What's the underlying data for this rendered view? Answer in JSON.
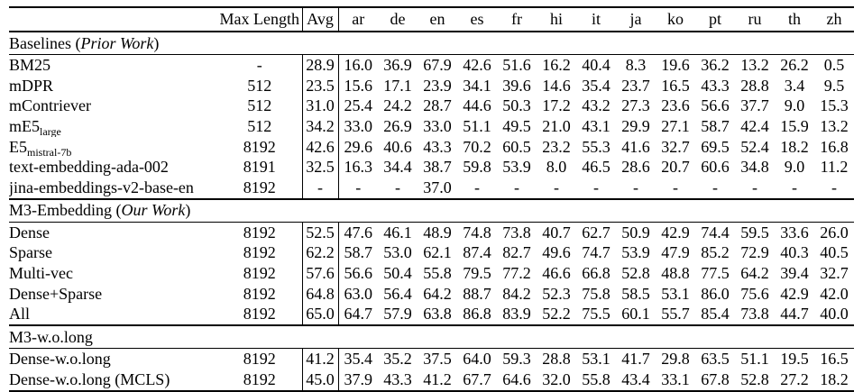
{
  "page": {
    "background_color": "#ffffff",
    "text_color": "#000000",
    "rule_color": "#000000"
  },
  "header": {
    "model_col": "",
    "max_length": "Max Length",
    "avg": "Avg",
    "languages": [
      "ar",
      "de",
      "en",
      "es",
      "fr",
      "hi",
      "it",
      "ja",
      "ko",
      "pt",
      "ru",
      "th",
      "zh"
    ]
  },
  "sections": [
    {
      "title_prefix": "Baselines (",
      "title_italic": "Prior Work",
      "title_suffix": ")",
      "rows": [
        {
          "label": "BM25",
          "label_sub": "",
          "max_length": "-",
          "avg": "28.9",
          "avg_bold": false,
          "values": [
            "16.0",
            "36.9",
            "67.9",
            "42.6",
            "51.6",
            "16.2",
            "40.4",
            "8.3",
            "19.6",
            "36.2",
            "13.2",
            "26.2",
            "0.5"
          ],
          "bold_values": []
        },
        {
          "label": "mDPR",
          "label_sub": "",
          "max_length": "512",
          "avg": "23.5",
          "avg_bold": false,
          "values": [
            "15.6",
            "17.1",
            "23.9",
            "34.1",
            "39.6",
            "14.6",
            "35.4",
            "23.7",
            "16.5",
            "43.3",
            "28.8",
            "3.4",
            "9.5"
          ],
          "bold_values": []
        },
        {
          "label": "mContriever",
          "label_sub": "",
          "max_length": "512",
          "avg": "31.0",
          "avg_bold": false,
          "values": [
            "25.4",
            "24.2",
            "28.7",
            "44.6",
            "50.3",
            "17.2",
            "43.2",
            "27.3",
            "23.6",
            "56.6",
            "37.7",
            "9.0",
            "15.3"
          ],
          "bold_values": []
        },
        {
          "label": "mE5",
          "label_sub": "large",
          "max_length": "512",
          "avg": "34.2",
          "avg_bold": false,
          "values": [
            "33.0",
            "26.9",
            "33.0",
            "51.1",
            "49.5",
            "21.0",
            "43.1",
            "29.9",
            "27.1",
            "58.7",
            "42.4",
            "15.9",
            "13.2"
          ],
          "bold_values": []
        },
        {
          "label": "E5",
          "label_sub": "mistral-7b",
          "max_length": "8192",
          "avg": "42.6",
          "avg_bold": false,
          "values": [
            "29.6",
            "40.6",
            "43.3",
            "70.2",
            "60.5",
            "23.2",
            "55.3",
            "41.6",
            "32.7",
            "69.5",
            "52.4",
            "18.2",
            "16.8"
          ],
          "bold_values": []
        },
        {
          "label": "text-embedding-ada-002",
          "label_sub": "",
          "max_length": "8191",
          "avg": "32.5",
          "avg_bold": false,
          "values": [
            "16.3",
            "34.4",
            "38.7",
            "59.8",
            "53.9",
            "8.0",
            "46.5",
            "28.6",
            "20.7",
            "60.6",
            "34.8",
            "9.0",
            "11.2"
          ],
          "bold_values": []
        },
        {
          "label": "jina-embeddings-v2-base-en",
          "label_sub": "",
          "max_length": "8192",
          "avg": "-",
          "avg_bold": false,
          "values": [
            "-",
            "-",
            "37.0",
            "-",
            "-",
            "-",
            "-",
            "-",
            "-",
            "-",
            "-",
            "-",
            "-"
          ],
          "bold_values": []
        }
      ]
    },
    {
      "title_prefix": "M3-Embedding (",
      "title_italic": "Our Work",
      "title_suffix": ")",
      "rows": [
        {
          "label": "Dense",
          "label_sub": "",
          "max_length": "8192",
          "avg": "52.5",
          "avg_bold": false,
          "values": [
            "47.6",
            "46.1",
            "48.9",
            "74.8",
            "73.8",
            "40.7",
            "62.7",
            "50.9",
            "42.9",
            "74.4",
            "59.5",
            "33.6",
            "26.0"
          ],
          "bold_values": []
        },
        {
          "label": "Sparse",
          "label_sub": "",
          "max_length": "8192",
          "avg": "62.2",
          "avg_bold": false,
          "values": [
            "58.7",
            "53.0",
            "62.1",
            "87.4",
            "82.7",
            "49.6",
            "74.7",
            "53.9",
            "47.9",
            "85.2",
            "72.9",
            "40.3",
            "40.5"
          ],
          "bold_values": []
        },
        {
          "label": "Multi-vec",
          "label_sub": "",
          "max_length": "8192",
          "avg": "57.6",
          "avg_bold": false,
          "values": [
            "56.6",
            "50.4",
            "55.8",
            "79.5",
            "77.2",
            "46.6",
            "66.8",
            "52.8",
            "48.8",
            "77.5",
            "64.2",
            "39.4",
            "32.7"
          ],
          "bold_values": []
        },
        {
          "label": "Dense+Sparse",
          "label_sub": "",
          "max_length": "8192",
          "avg": "64.8",
          "avg_bold": false,
          "values": [
            "63.0",
            "56.4",
            "64.2",
            "88.7",
            "84.2",
            "52.3",
            "75.8",
            "58.5",
            "53.1",
            "86.0",
            "75.6",
            "42.9",
            "42.0"
          ],
          "bold_values": [
            2,
            3,
            4,
            5,
            6,
            9,
            10,
            12
          ]
        },
        {
          "label": "All",
          "label_sub": "",
          "max_length": "8192",
          "avg": "65.0",
          "avg_bold": true,
          "values": [
            "64.7",
            "57.9",
            "63.8",
            "86.8",
            "83.9",
            "52.2",
            "75.5",
            "60.1",
            "55.7",
            "85.4",
            "73.8",
            "44.7",
            "40.0"
          ],
          "bold_values": [
            0,
            1,
            7,
            8,
            11
          ]
        }
      ]
    },
    {
      "title_prefix": "M3-w.o.long",
      "title_italic": "",
      "title_suffix": "",
      "rows": [
        {
          "label": "Dense-w.o.long",
          "label_sub": "",
          "max_length": "8192",
          "avg": "41.2",
          "avg_bold": false,
          "values": [
            "35.4",
            "35.2",
            "37.5",
            "64.0",
            "59.3",
            "28.8",
            "53.1",
            "41.7",
            "29.8",
            "63.5",
            "51.1",
            "19.5",
            "16.5"
          ],
          "bold_values": []
        },
        {
          "label": "Dense-w.o.long (MCLS)",
          "label_sub": "",
          "max_length": "8192",
          "avg": "45.0",
          "avg_bold": false,
          "values": [
            "37.9",
            "43.3",
            "41.2",
            "67.7",
            "64.6",
            "32.0",
            "55.8",
            "43.4",
            "33.1",
            "67.8",
            "52.8",
            "27.2",
            "18.2"
          ],
          "bold_values": []
        }
      ]
    }
  ]
}
